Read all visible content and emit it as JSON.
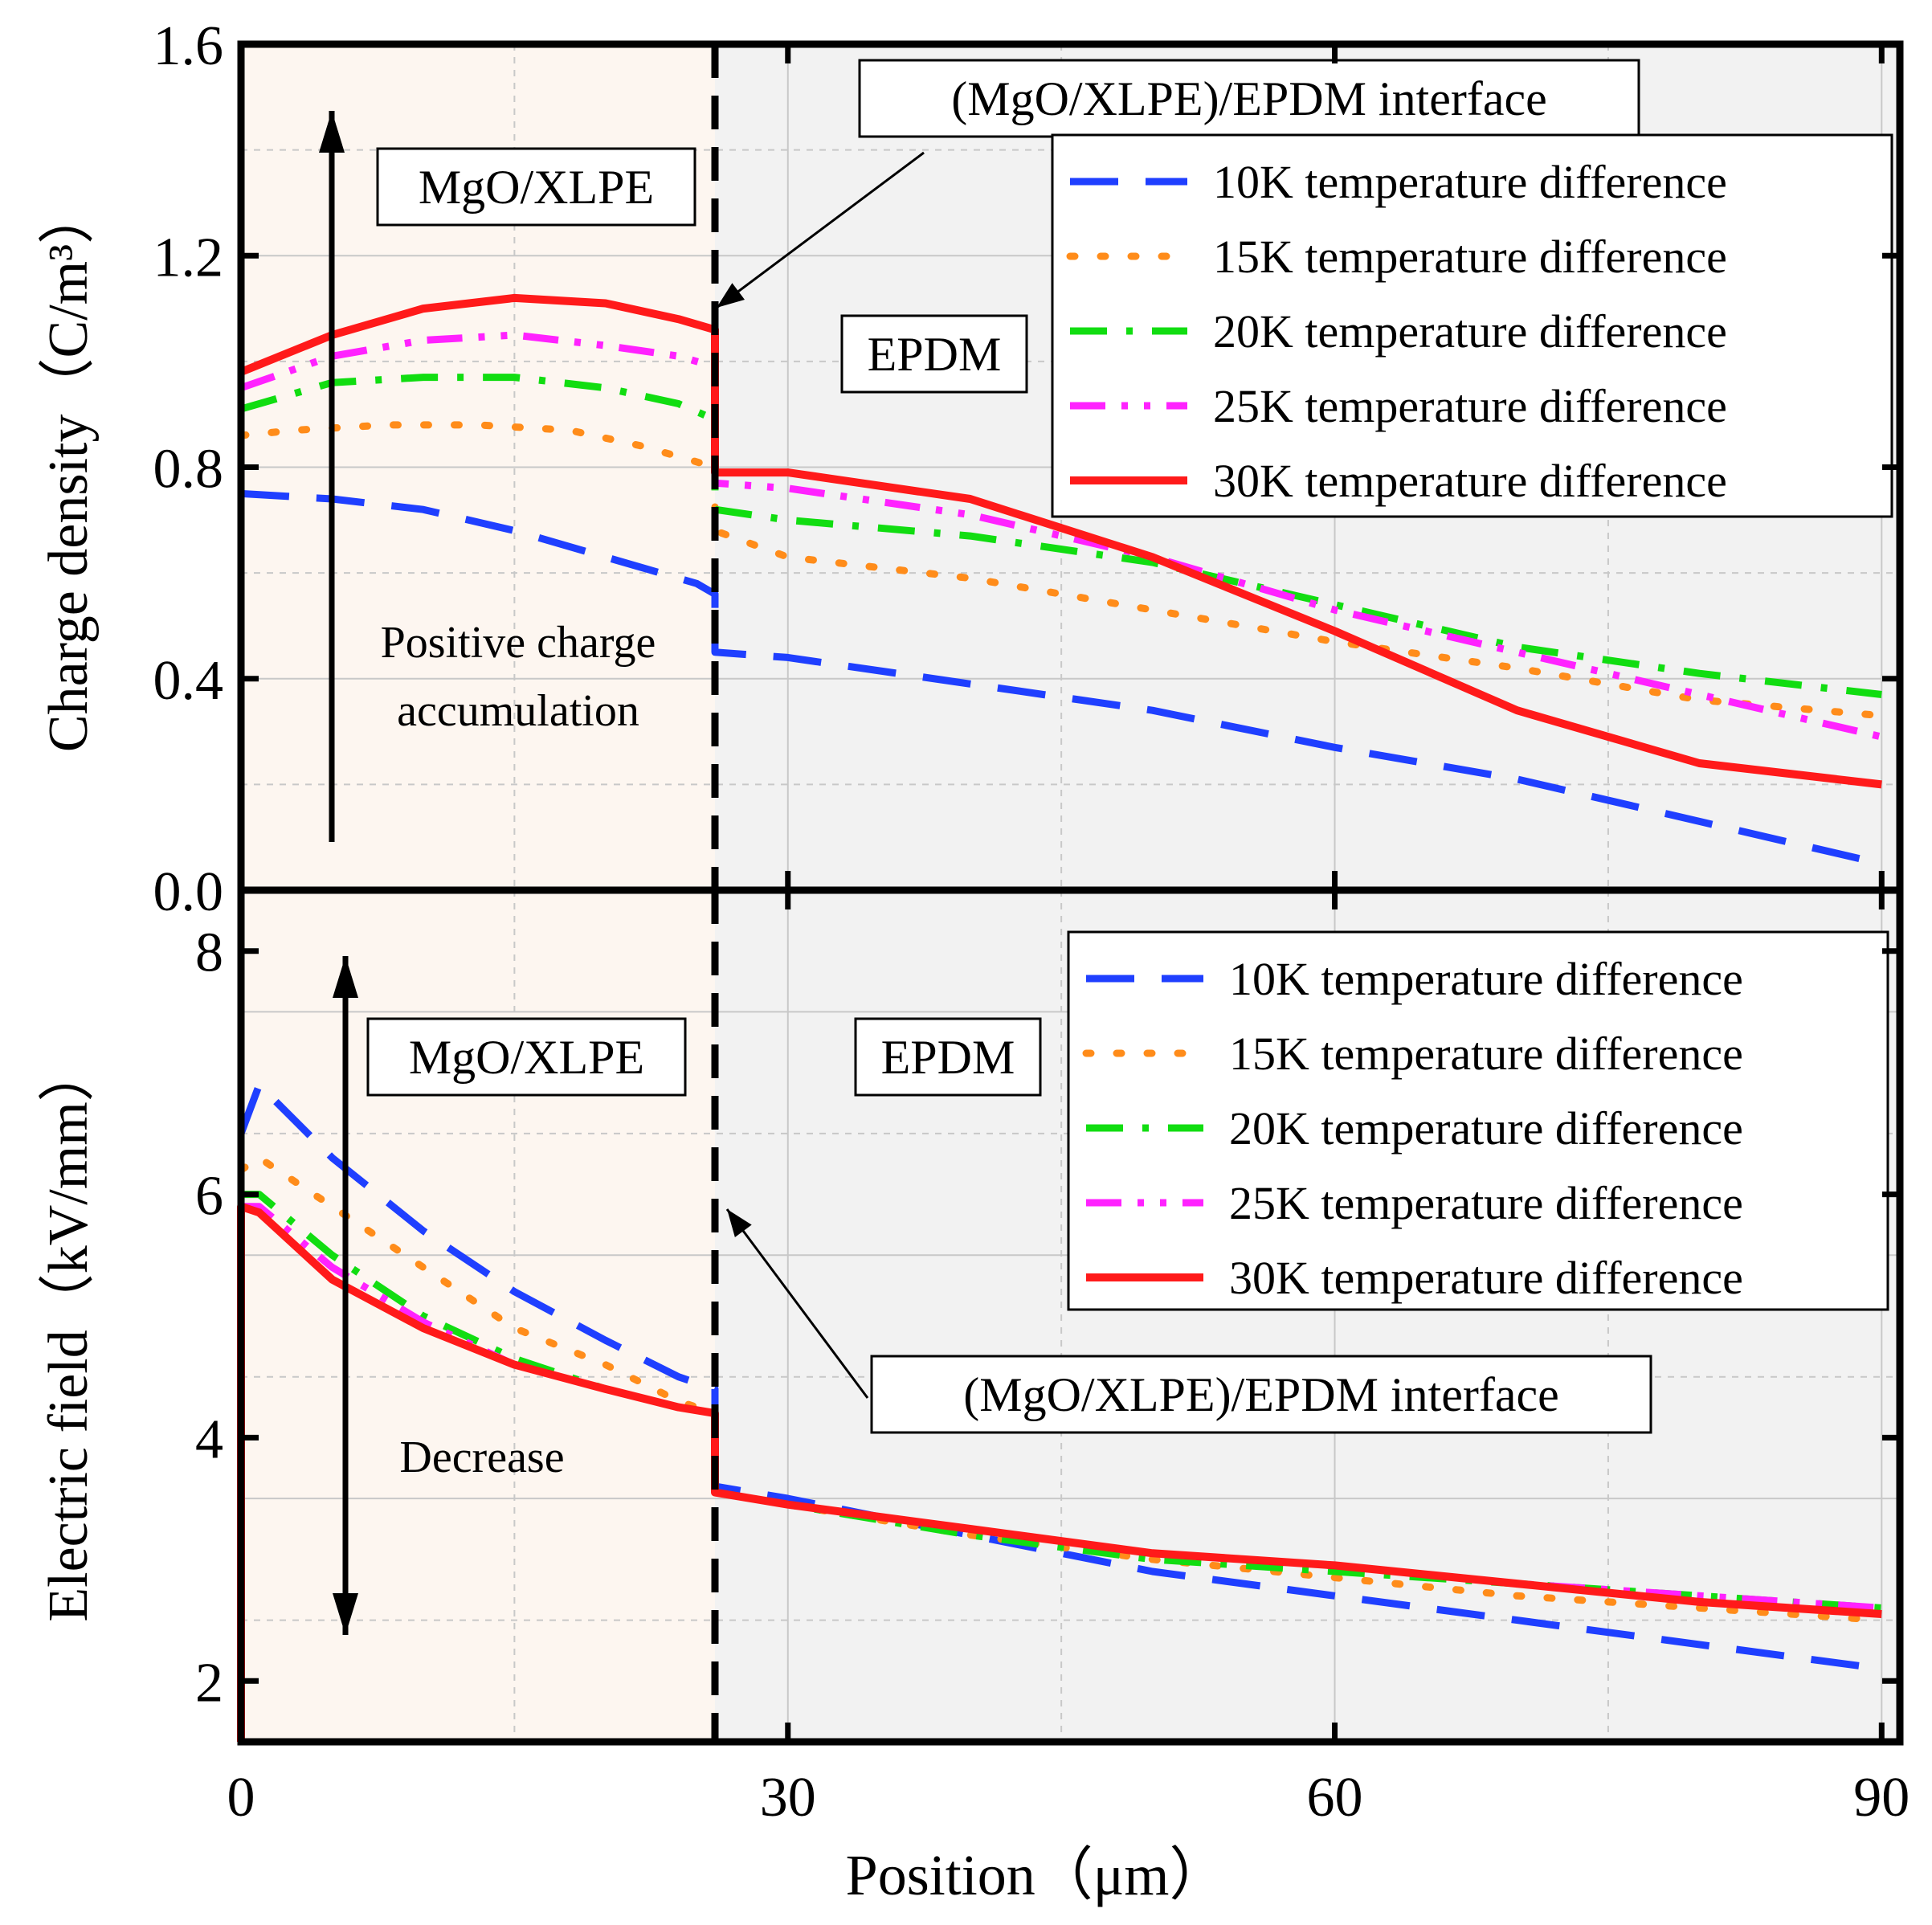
{
  "chart_data": [
    {
      "type": "line",
      "panel": "top",
      "ylabel": "Charge density（C/m³）",
      "ylim": [
        0,
        1.6
      ],
      "yticks": [
        "0.0",
        "0.4",
        "0.8",
        "1.2",
        "1.6"
      ],
      "ytick_values": [
        0,
        0.4,
        0.8,
        1.2,
        1.6
      ],
      "xlim": [
        0,
        91
      ],
      "interface_x": 26,
      "region_labels": {
        "left": "MgO/XLPE",
        "right": "EPDM"
      },
      "interface_label": "(MgO/XLPE)/EPDM interface",
      "annotation": "Positive charge\naccumulation",
      "annotation_lines": [
        "Positive charge",
        "accumulation"
      ],
      "legend": "top-right",
      "series": [
        {
          "name": "10K temperature difference",
          "color": "#1f3fff",
          "style": "dash",
          "x": [
            0,
            5,
            10,
            15,
            20,
            25,
            26,
            26,
            30,
            40,
            50,
            60,
            70,
            80,
            90
          ],
          "y": [
            0.75,
            0.74,
            0.72,
            0.68,
            0.63,
            0.58,
            0.56,
            0.45,
            0.44,
            0.39,
            0.34,
            0.27,
            0.21,
            0.13,
            0.05
          ]
        },
        {
          "name": "15K temperature difference",
          "color": "#ff8c1a",
          "style": "dot",
          "x": [
            0,
            3,
            8,
            13,
            18,
            22,
            26,
            26,
            30,
            40,
            50,
            60,
            70,
            80,
            90
          ],
          "y": [
            0.86,
            0.87,
            0.88,
            0.88,
            0.87,
            0.84,
            0.8,
            0.68,
            0.63,
            0.59,
            0.53,
            0.47,
            0.42,
            0.36,
            0.33
          ]
        },
        {
          "name": "20K temperature difference",
          "color": "#11dd11",
          "style": "dashdot",
          "x": [
            0,
            5,
            10,
            15,
            20,
            24,
            26,
            26,
            30,
            40,
            50,
            60,
            70,
            80,
            90
          ],
          "y": [
            0.91,
            0.96,
            0.97,
            0.97,
            0.95,
            0.92,
            0.89,
            0.72,
            0.7,
            0.67,
            0.62,
            0.54,
            0.46,
            0.41,
            0.37
          ]
        },
        {
          "name": "25K temperature difference",
          "color": "#ff22ff",
          "style": "dashdotdot",
          "x": [
            0,
            5,
            10,
            15,
            20,
            24,
            26,
            26,
            30,
            40,
            50,
            60,
            70,
            80,
            90
          ],
          "y": [
            0.95,
            1.01,
            1.04,
            1.05,
            1.03,
            1.01,
            0.99,
            0.77,
            0.76,
            0.71,
            0.63,
            0.53,
            0.45,
            0.37,
            0.29
          ]
        },
        {
          "name": "30K temperature difference",
          "color": "#ff1a1a",
          "style": "solid",
          "x": [
            0,
            5,
            10,
            15,
            20,
            24,
            26,
            26,
            30,
            40,
            50,
            60,
            70,
            80,
            90
          ],
          "y": [
            0.98,
            1.05,
            1.1,
            1.12,
            1.11,
            1.08,
            1.06,
            0.79,
            0.79,
            0.74,
            0.63,
            0.49,
            0.34,
            0.24,
            0.2
          ]
        }
      ]
    },
    {
      "type": "line",
      "panel": "bottom",
      "ylabel": "Electric field（kV/mm）",
      "ylim": [
        1.5,
        8.5
      ],
      "yticks": [
        "2",
        "4",
        "6",
        "8"
      ],
      "ytick_values": [
        2,
        4,
        6,
        8
      ],
      "xlabel": "Position（μm）",
      "xlim": [
        0,
        91
      ],
      "xticks": [
        "0",
        "30",
        "60",
        "90"
      ],
      "xtick_values": [
        0,
        30,
        60,
        90
      ],
      "interface_x": 26,
      "region_labels": {
        "left": "MgO/XLPE",
        "right": "EPDM"
      },
      "interface_label": "(MgO/XLPE)/EPDM interface",
      "annotation": "Decrease",
      "legend": "top-right",
      "series": [
        {
          "name": "10K temperature difference",
          "color": "#1f3fff",
          "style": "dash",
          "x": [
            0,
            1,
            5,
            10,
            15,
            20,
            24,
            26,
            26,
            30,
            40,
            50,
            60,
            70,
            80,
            90
          ],
          "y": [
            6.5,
            6.9,
            6.3,
            5.7,
            5.2,
            4.8,
            4.5,
            4.4,
            3.6,
            3.5,
            3.2,
            2.9,
            2.7,
            2.5,
            2.3,
            2.1
          ]
        },
        {
          "name": "15K temperature difference",
          "color": "#ff8c1a",
          "style": "dot",
          "x": [
            0,
            1,
            5,
            10,
            15,
            20,
            24,
            26,
            26,
            30,
            40,
            50,
            60,
            70,
            80,
            90
          ],
          "y": [
            6.2,
            6.3,
            5.9,
            5.4,
            4.9,
            4.6,
            4.3,
            4.2,
            3.55,
            3.45,
            3.2,
            3.0,
            2.85,
            2.7,
            2.6,
            2.5
          ]
        },
        {
          "name": "20K temperature difference",
          "color": "#11dd11",
          "style": "dashdot",
          "x": [
            0,
            1,
            5,
            10,
            15,
            20,
            24,
            26,
            26,
            30,
            40,
            50,
            60,
            70,
            80,
            90
          ],
          "y": [
            6.0,
            6.0,
            5.5,
            5.0,
            4.65,
            4.4,
            4.25,
            4.2,
            3.55,
            3.45,
            3.2,
            3.0,
            2.9,
            2.8,
            2.7,
            2.6
          ]
        },
        {
          "name": "25K temperature difference",
          "color": "#ff22ff",
          "style": "dashdotdot",
          "x": [
            0,
            1,
            5,
            10,
            15,
            20,
            24,
            26,
            26,
            30,
            40,
            50,
            60,
            70,
            80,
            90
          ],
          "y": [
            5.9,
            5.9,
            5.4,
            4.95,
            4.6,
            4.4,
            4.25,
            4.2,
            3.55,
            3.45,
            3.25,
            3.05,
            2.95,
            2.8,
            2.7,
            2.6
          ]
        },
        {
          "name": "30K temperature difference",
          "color": "#ff1a1a",
          "style": "solid",
          "x": [
            0,
            0,
            1,
            5,
            10,
            15,
            20,
            24,
            26,
            26,
            30,
            40,
            50,
            60,
            70,
            80,
            90
          ],
          "y": [
            1.5,
            5.9,
            5.85,
            5.3,
            4.9,
            4.6,
            4.4,
            4.25,
            4.2,
            3.55,
            3.45,
            3.25,
            3.05,
            2.95,
            2.8,
            2.65,
            2.55
          ]
        }
      ]
    }
  ]
}
